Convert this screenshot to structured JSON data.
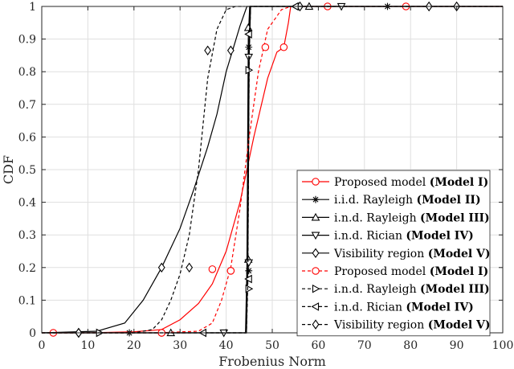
{
  "chart_data": {
    "type": "line",
    "title": "",
    "xlabel": "Frobenius Norm",
    "ylabel": "CDF",
    "xlim": [
      0,
      100
    ],
    "ylim": [
      0,
      1
    ],
    "xticks": [
      "0",
      "10",
      "20",
      "30",
      "40",
      "50",
      "60",
      "70",
      "80",
      "90",
      "100"
    ],
    "yticks": [
      "0",
      "0.1",
      "0.2",
      "0.3",
      "0.4",
      "0.5",
      "0.6",
      "0.7",
      "0.8",
      "0.9",
      "1"
    ],
    "grid": true,
    "legend_position": "bottom-right",
    "series": [
      {
        "name": "Proposed model (Model I)",
        "label": "Proposed model",
        "model": "(Model I)",
        "color": "#ff0000",
        "dash": "solid",
        "marker": "circle",
        "x": [
          2.5,
          10,
          20,
          26,
          30,
          34,
          37,
          40,
          43,
          46,
          49,
          51,
          52.5,
          53.5,
          54,
          60,
          62,
          70,
          79,
          100
        ],
        "y": [
          0,
          0,
          0.003,
          0.01,
          0.04,
          0.09,
          0.15,
          0.25,
          0.4,
          0.6,
          0.78,
          0.86,
          0.875,
          0.95,
          1,
          1,
          1,
          1,
          1,
          1
        ],
        "markers_x": [
          2.5,
          26,
          37,
          41,
          52.5,
          62,
          79
        ],
        "markers_y": [
          0,
          0,
          0.195,
          0.19,
          0.875,
          1,
          1
        ]
      },
      {
        "name": "i.i.d. Rayleigh (Model II)",
        "label": "i.i.d. Rayleigh",
        "model": "(Model II)",
        "color": "#000000",
        "dash": "solid",
        "marker": "asterisk",
        "x": [
          0,
          44.3,
          44.6,
          44.9,
          45.2,
          100
        ],
        "y": [
          0,
          0,
          0.2,
          0.85,
          1,
          1
        ],
        "markers_x": [
          19,
          44.9,
          44.9,
          75
        ],
        "markers_y": [
          0,
          0.19,
          0.875,
          1
        ]
      },
      {
        "name": "i.n.d. Rayleigh (Model III)",
        "label": "i.n.d. Rayleigh",
        "model": "(Model III)",
        "color": "#000000",
        "dash": "solid",
        "marker": "triangle-up",
        "x": [
          0,
          44.2,
          44.5,
          44.8,
          45.1,
          100
        ],
        "y": [
          0,
          0,
          0.2,
          0.9,
          1,
          1
        ],
        "markers_x": [
          28,
          44.8,
          44.8,
          58
        ],
        "markers_y": [
          0,
          0.225,
          0.935,
          1
        ]
      },
      {
        "name": "i.n.d. Rician (Model IV)",
        "label": "i.n.d. Rician",
        "model": "(Model IV)",
        "color": "#000000",
        "dash": "solid",
        "marker": "triangle-down",
        "x": [
          0,
          44.4,
          44.7,
          45.0,
          45.3,
          100
        ],
        "y": [
          0,
          0,
          0.2,
          0.85,
          1,
          1
        ],
        "markers_x": [
          39.5,
          44.9,
          44.9,
          65
        ],
        "markers_y": [
          0,
          0.215,
          0.845,
          1
        ]
      },
      {
        "name": "Visibility region (Model V)",
        "label": "Visibility region",
        "model": "(Model V)",
        "color": "#000000",
        "dash": "solid",
        "marker": "diamond",
        "x": [
          0,
          12,
          18,
          22,
          26,
          30,
          33,
          36,
          38,
          40,
          41.5,
          43,
          44,
          44.5,
          100
        ],
        "y": [
          0,
          0.005,
          0.03,
          0.1,
          0.2,
          0.32,
          0.44,
          0.57,
          0.67,
          0.8,
          0.87,
          0.94,
          0.98,
          1,
          1
        ],
        "markers_x": [
          8,
          26,
          41,
          56,
          90
        ],
        "markers_y": [
          0,
          0.2,
          0.865,
          1,
          1
        ]
      },
      {
        "name": "Proposed model (Model I)",
        "label": "Proposed model",
        "model": "(Model I)",
        "color": "#ff0000",
        "dash": "dashed",
        "marker": "circle",
        "x": [
          0,
          25,
          34,
          37,
          39,
          41,
          43,
          45,
          47,
          49,
          52,
          54
        ],
        "y": [
          0,
          0,
          0.005,
          0.03,
          0.1,
          0.2,
          0.38,
          0.6,
          0.8,
          0.93,
          0.99,
          1
        ],
        "markers_x": [
          26,
          41,
          48.5
        ],
        "markers_y": [
          0,
          0.19,
          0.875
        ]
      },
      {
        "name": "i.n.d. Rayleigh (Model III)",
        "label": "i.n.d. Rayleigh",
        "model": "(Model III)",
        "color": "#000000",
        "dash": "dashed",
        "marker": "triangle-right",
        "x": [
          0,
          44.3,
          44.6,
          44.9,
          45.2,
          100
        ],
        "y": [
          0,
          0,
          0.15,
          0.85,
          1,
          1
        ],
        "markers_x": [
          12.5,
          44.9,
          44.9
        ],
        "markers_y": [
          0,
          0.135,
          0.805
        ]
      },
      {
        "name": "i.n.d. Rician (Model IV)",
        "label": "i.n.d. Rician",
        "model": "(Model IV)",
        "color": "#000000",
        "dash": "dashed",
        "marker": "triangle-left",
        "x": [
          0,
          44.4,
          44.7,
          45.0,
          45.3,
          100
        ],
        "y": [
          0,
          0,
          0.15,
          0.85,
          1,
          1
        ],
        "markers_x": [
          35,
          44.9,
          44.9,
          55
        ],
        "markers_y": [
          0,
          0.165,
          0.915,
          1
        ]
      },
      {
        "name": "Visibility region (Model V)",
        "label": "Visibility region",
        "model": "(Model V)",
        "color": "#000000",
        "dash": "dashed",
        "marker": "diamond",
        "x": [
          0,
          20,
          24,
          26,
          28,
          30,
          32,
          34,
          36,
          38,
          40,
          42,
          44
        ],
        "y": [
          0,
          0,
          0.01,
          0.04,
          0.1,
          0.18,
          0.3,
          0.5,
          0.78,
          0.93,
          0.99,
          1,
          1
        ],
        "markers_x": [
          8,
          32,
          36,
          84
        ],
        "markers_y": [
          0,
          0.2,
          0.865,
          1
        ]
      }
    ]
  }
}
